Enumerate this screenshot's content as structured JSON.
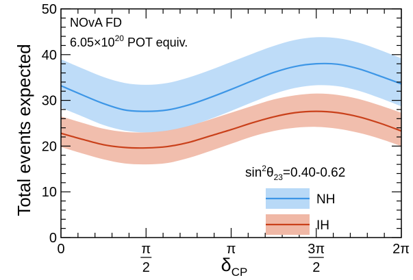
{
  "chart_data": {
    "type": "area",
    "title": "",
    "xlabel": "δ_CP",
    "xlabel_main": "δ",
    "xlabel_sub": "CP",
    "ylabel": "Total events expected",
    "xlim": [
      0,
      6.2832
    ],
    "ylim": [
      0,
      50
    ],
    "y_ticks": [
      0,
      10,
      20,
      30,
      40,
      50
    ],
    "y_tick_labels": [
      "0",
      "10",
      "20",
      "30",
      "40",
      "50"
    ],
    "x_ticks": [
      0,
      1.5708,
      3.1416,
      4.7124,
      6.2832
    ],
    "x_tick_labels": [
      "0",
      "π/2",
      "π",
      "3π/2",
      "2π"
    ],
    "grid": false,
    "annotations": [
      {
        "text": "NOvA FD"
      },
      {
        "text": "6.05×10^20 POT equiv.",
        "base": "6.05×10",
        "exp": "20",
        "rest": " POT equiv."
      }
    ],
    "legend": {
      "position": "bottom-right",
      "header": "sin²θ₂₃=0.40-0.62",
      "header_parts": {
        "a": "sin",
        "b": "2",
        "c": "θ",
        "d": "23",
        "e": "=0.40-0.62"
      },
      "entries": [
        "NH",
        "IH"
      ]
    },
    "x": [
      0,
      0.3927,
      0.7854,
      1.1781,
      1.5708,
      1.9635,
      2.3562,
      2.7489,
      3.1416,
      3.5343,
      3.927,
      4.3197,
      4.7124,
      5.1051,
      5.4978,
      5.8905,
      6.2832
    ],
    "series": [
      {
        "name": "NH",
        "color": "#3d96e6",
        "band_color": "#b8d9f7",
        "central": [
          33.2,
          31.2,
          29.3,
          27.9,
          27.6,
          27.9,
          29.0,
          30.6,
          32.4,
          34.3,
          36.1,
          37.4,
          38.0,
          37.9,
          36.9,
          35.3,
          33.6
        ],
        "band_low": [
          28.4,
          26.5,
          24.6,
          23.4,
          23.0,
          23.3,
          24.3,
          25.9,
          27.7,
          29.6,
          31.4,
          32.7,
          33.3,
          33.1,
          32.1,
          30.5,
          28.7
        ],
        "band_high": [
          39.0,
          37.0,
          35.1,
          33.8,
          33.4,
          33.8,
          35.0,
          36.6,
          38.4,
          40.2,
          41.9,
          43.2,
          43.8,
          43.6,
          42.6,
          41.0,
          39.2
        ]
      },
      {
        "name": "IH",
        "color": "#c9401a",
        "band_color": "#f0b8a6",
        "central": [
          22.8,
          21.5,
          20.3,
          19.7,
          19.6,
          19.9,
          20.8,
          22.2,
          23.6,
          25.1,
          26.4,
          27.3,
          27.6,
          27.3,
          26.4,
          25.0,
          23.3
        ],
        "band_low": [
          19.8,
          18.4,
          17.1,
          16.2,
          16.0,
          16.3,
          17.4,
          18.9,
          20.5,
          22.1,
          23.3,
          24.0,
          24.2,
          23.8,
          22.9,
          21.6,
          20.0
        ],
        "band_high": [
          26.5,
          25.1,
          23.8,
          23.1,
          23.0,
          23.4,
          24.4,
          25.8,
          27.3,
          28.8,
          30.2,
          31.1,
          31.5,
          31.2,
          30.3,
          28.9,
          27.3
        ]
      }
    ]
  }
}
